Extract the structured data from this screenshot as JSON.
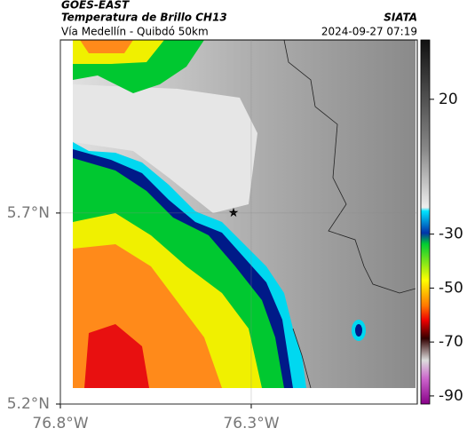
{
  "header": {
    "title": "GOES-EAST",
    "subtitle": "Temperatura de Brillo CH13",
    "route": "Vía Medellín - Quibdó 50km",
    "source": "SIATA",
    "timestamp": "2024-09-27 07:19"
  },
  "map": {
    "lonlim": [
      -76.8,
      -75.865
    ],
    "latlim": [
      5.2,
      6.153
    ],
    "lonticks": [
      {
        "value": -76.8,
        "label": "76.8°W"
      },
      {
        "value": -76.3,
        "label": "76.3°W"
      }
    ],
    "latticks": [
      {
        "value": 5.7,
        "label": "5.7°N"
      },
      {
        "value": 5.2,
        "label": "5.2°N"
      }
    ]
  },
  "colorbar": {
    "lim": [
      -93,
      42
    ],
    "ticks": [
      20,
      -30,
      -50,
      -70,
      -90
    ]
  }
}
